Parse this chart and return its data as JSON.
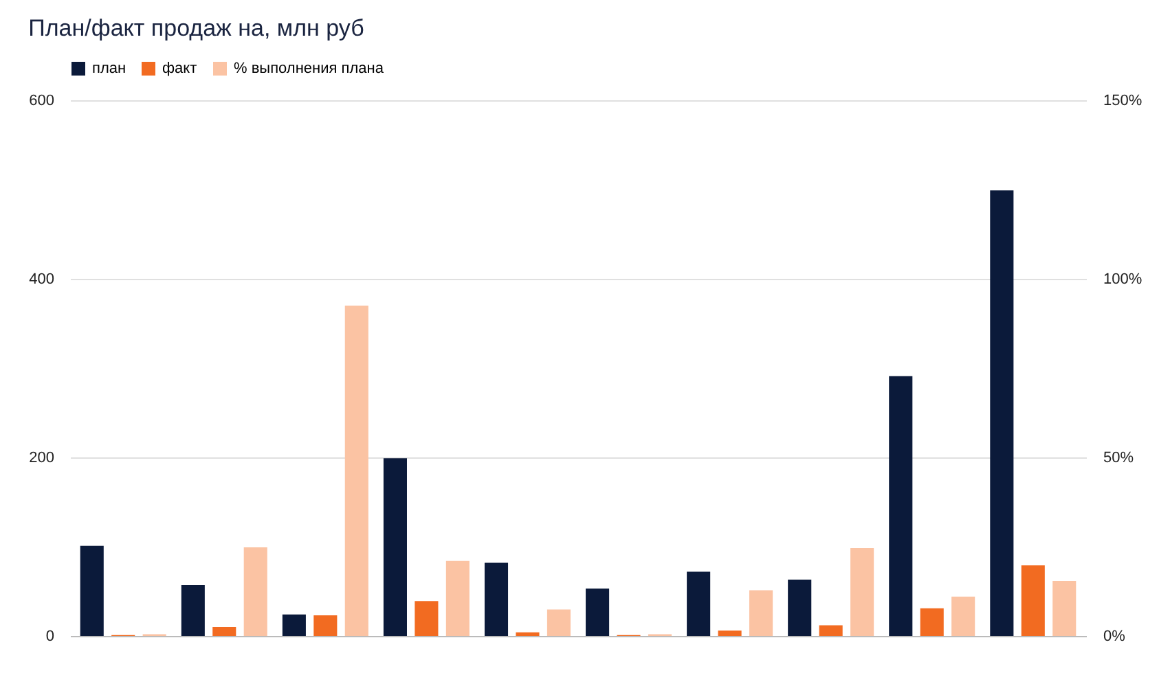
{
  "chart_data": {
    "type": "bar",
    "title": "План/факт продаж на, млн руб",
    "categories": [
      null,
      null,
      null,
      null,
      null,
      null,
      null,
      null,
      null,
      null
    ],
    "series": [
      {
        "name": "план",
        "color": "#0b1a3a",
        "values": [
          101,
          57,
          24,
          199,
          82,
          53,
          72,
          63,
          291,
          499
        ]
      },
      {
        "name": "факт",
        "color": "#f26b21",
        "values": [
          1,
          10,
          23,
          39,
          4,
          1,
          6,
          12,
          31,
          79
        ]
      },
      {
        "name": "% выполнения плана",
        "color": "#fbc3a3",
        "axis": "y2",
        "values": [
          0.5,
          24.8,
          92.5,
          21,
          7.4,
          0.5,
          12.8,
          24.6,
          11,
          15.4
        ]
      }
    ],
    "ylim": [
      0,
      600
    ],
    "yticks": [
      0,
      200,
      400,
      600
    ],
    "y2lim": [
      0,
      150
    ],
    "y2ticks": [
      {
        "value": 0,
        "label": "0%"
      },
      {
        "value": 50,
        "label": "50%"
      },
      {
        "value": 100,
        "label": "100%"
      },
      {
        "value": 150,
        "label": "150%"
      }
    ],
    "grid": "y",
    "legend": "top"
  }
}
